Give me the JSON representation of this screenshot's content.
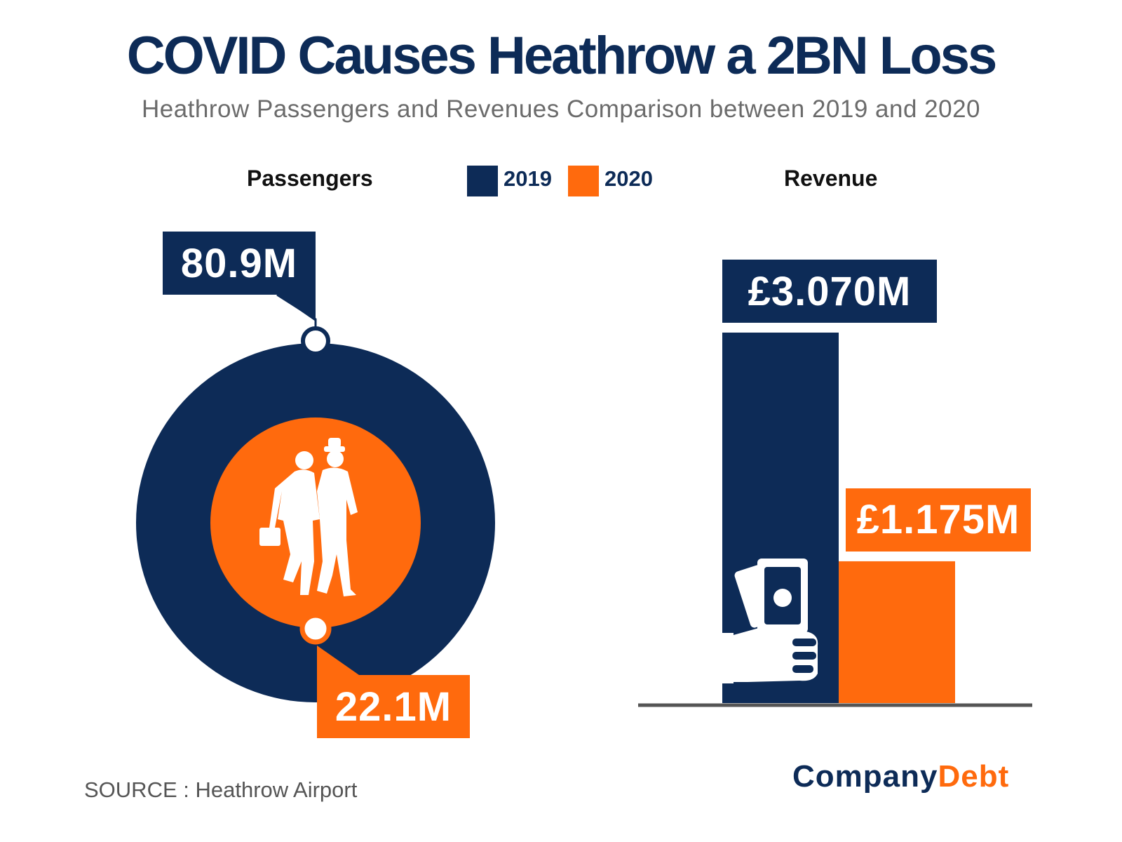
{
  "title": "COVID Causes Heathrow a 2BN Loss",
  "subtitle": "Heathrow Passengers and Revenues Comparison between 2019 and 2020",
  "colors": {
    "navy": "#0d2b57",
    "orange": "#ff6a0d",
    "axis": "#555555"
  },
  "legend": {
    "items": [
      {
        "label": "2019",
        "color": "#0d2b57"
      },
      {
        "label": "2020",
        "color": "#ff6a0d"
      }
    ]
  },
  "chart_data": [
    {
      "type": "pie",
      "title": "Passengers",
      "unit": "M",
      "series": [
        {
          "name": "2019",
          "value": 80.9,
          "label": "80.9M"
        },
        {
          "name": "2020",
          "value": 22.1,
          "label": "22.1M"
        }
      ],
      "icon": "people-walking-icon"
    },
    {
      "type": "bar",
      "title": "Revenue",
      "categories": [
        "2019",
        "2020"
      ],
      "values": [
        3070,
        1175
      ],
      "value_labels": [
        "£3.070M",
        "£1.175M"
      ],
      "ylim": [
        0,
        3200
      ],
      "icon": "hand-holding-money-icon"
    }
  ],
  "source": "SOURCE : Heathrow Airport",
  "logo": {
    "part1": "Company",
    "part2": "Debt"
  }
}
